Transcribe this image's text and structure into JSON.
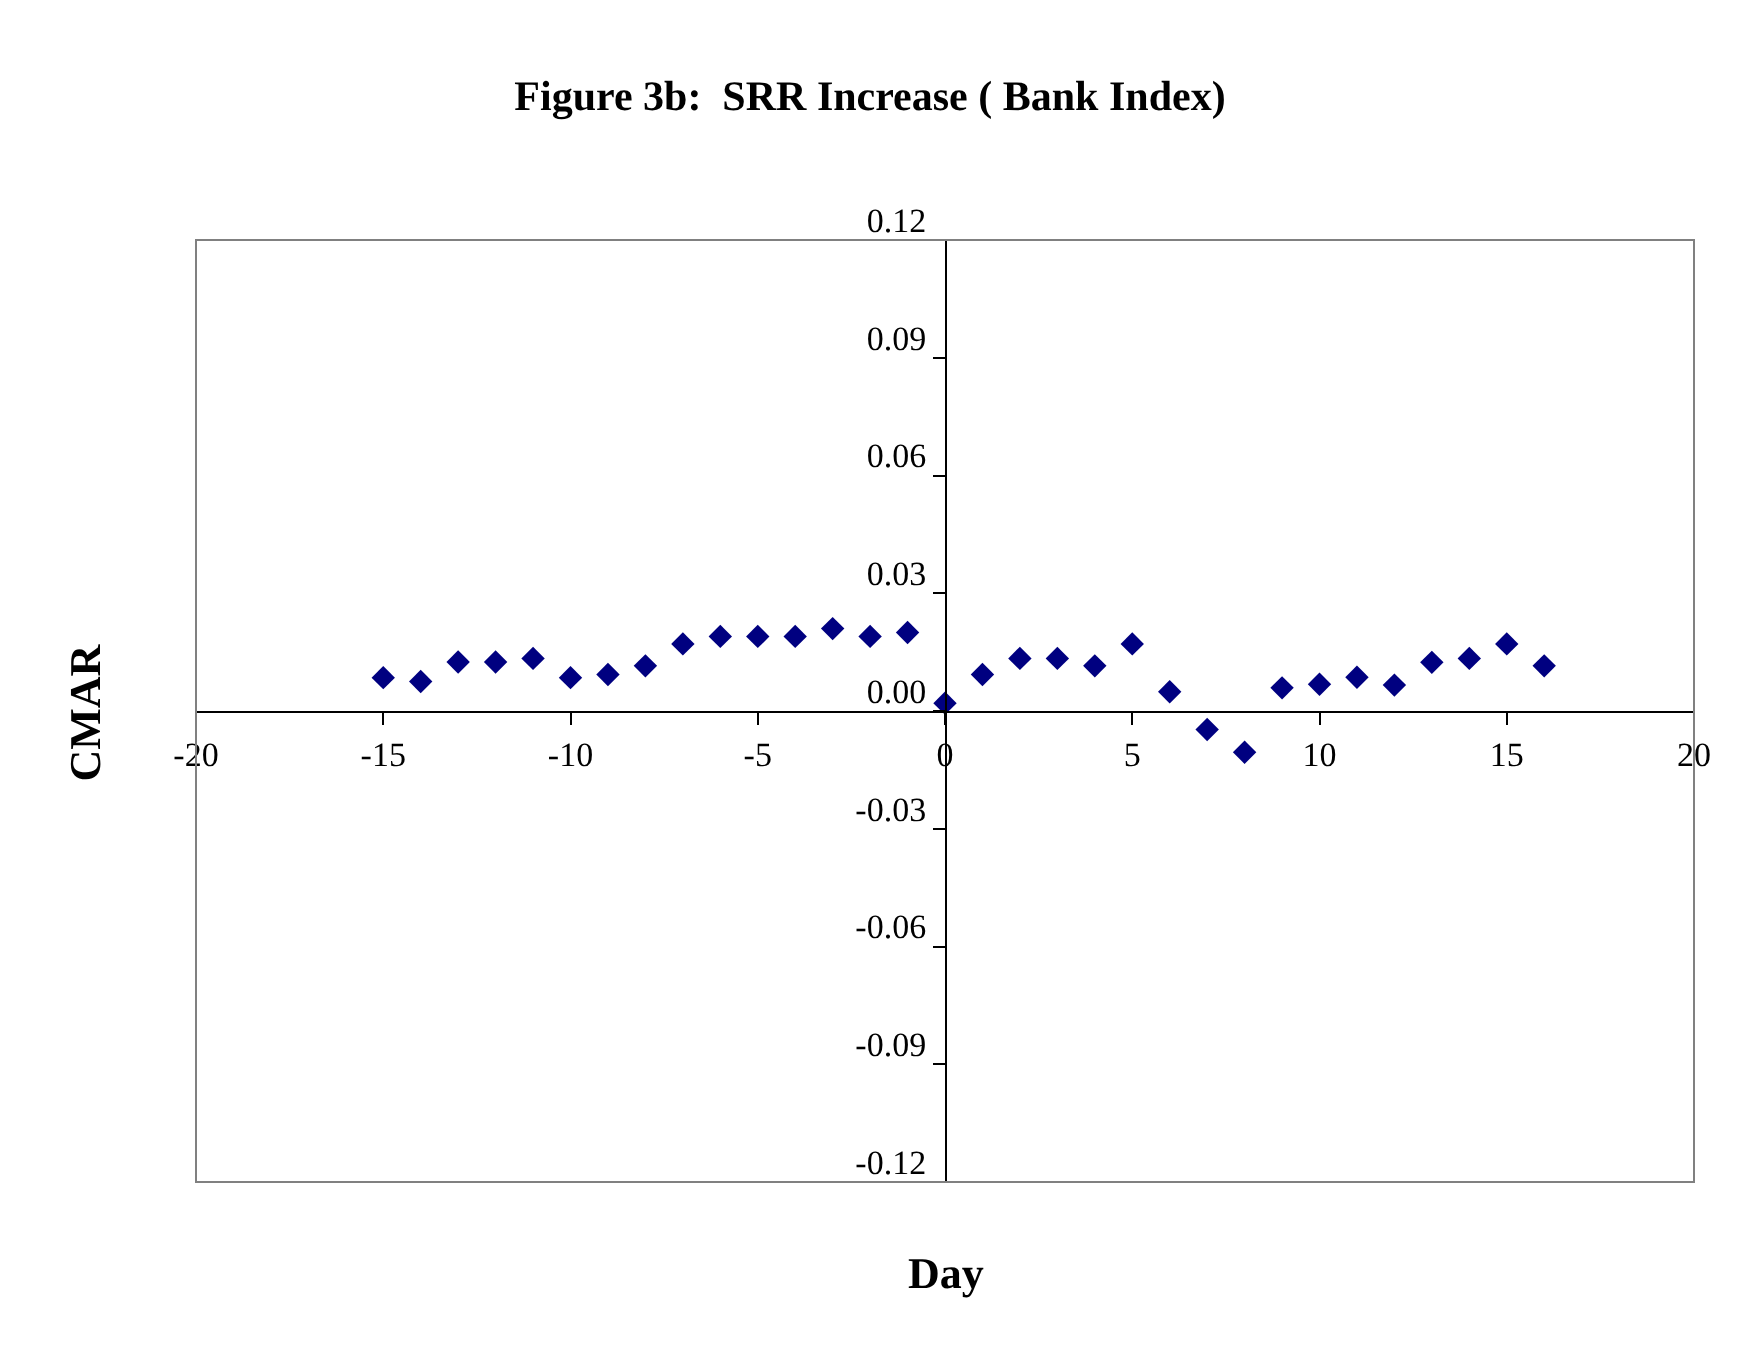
{
  "chart_data": {
    "type": "scatter",
    "title": "Figure 3b:  SRR Increase ( Bank Index)",
    "xlabel": "Day",
    "ylabel": "CMAR",
    "x": [
      -15,
      -14,
      -13,
      -12,
      -11,
      -10,
      -9,
      -8,
      -7,
      -6,
      -5,
      -4,
      -3,
      -2,
      -1,
      0,
      1,
      2,
      3,
      4,
      5,
      6,
      7,
      8,
      9,
      10,
      11,
      12,
      13,
      14,
      15,
      16
    ],
    "series": [
      {
        "color": "#000080",
        "values": [
          0.0085,
          0.0075,
          0.0125,
          0.0125,
          0.0134,
          0.0085,
          0.0093,
          0.0115,
          0.0171,
          0.019,
          0.019,
          0.019,
          0.021,
          0.019,
          0.02,
          0.002,
          0.0093,
          0.0134,
          0.0134,
          0.0115,
          0.0171,
          0.0049,
          -0.0047,
          -0.0105,
          0.0059,
          0.0068,
          0.0086,
          0.0066,
          0.0124,
          0.0134,
          0.0171,
          0.0115
        ]
      }
    ],
    "xlim": [
      -20,
      20
    ],
    "xticks": [
      -20,
      -15,
      -10,
      -5,
      0,
      5,
      10,
      15,
      20
    ],
    "ylim": [
      -0.12,
      0.12
    ],
    "yticks": [
      {
        "value": -0.12,
        "label": "-0.12"
      },
      {
        "value": -0.09,
        "label": "-0.09"
      },
      {
        "value": -0.06,
        "label": "-0.06"
      },
      {
        "value": -0.03,
        "label": "-0.03"
      },
      {
        "value": 0,
        "label": "0.00"
      },
      {
        "value": 0.03,
        "label": "0.03"
      },
      {
        "value": 0.06,
        "label": "0.06"
      },
      {
        "value": 0.09,
        "label": "0.09"
      },
      {
        "value": 0.12,
        "label": "0.12"
      }
    ],
    "marker": "diamond",
    "grid": false
  }
}
